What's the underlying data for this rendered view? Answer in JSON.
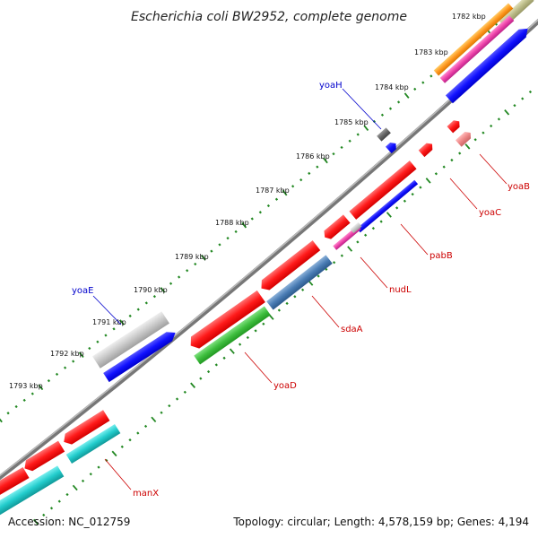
{
  "map": {
    "title": "Escherichia coli BW2952, complete genome",
    "accession": "Accession: NC_012759",
    "summary": "Topology: circular; Length: 4,578,159 bp; Genes: 4,194"
  },
  "kbp_ticks": [
    "1782 kbp",
    "1783 kbp",
    "1784 kbp",
    "1785 kbp",
    "1786 kbp",
    "1787 kbp",
    "1788 kbp",
    "1789 kbp",
    "1790 kbp",
    "1791 kbp",
    "1792 kbp",
    "1793 kbp"
  ],
  "gene_labels": [
    {
      "name": "yoaH",
      "color": "#0000cc"
    },
    {
      "name": "yoaE",
      "color": "#0000cc"
    },
    {
      "name": "yoaB",
      "color": "#cc0000"
    },
    {
      "name": "yoaC",
      "color": "#cc0000"
    },
    {
      "name": "pabB",
      "color": "#cc0000"
    },
    {
      "name": "nudL",
      "color": "#cc0000"
    },
    {
      "name": "sdaA",
      "color": "#cc0000"
    },
    {
      "name": "yoaD",
      "color": "#cc0000"
    },
    {
      "name": "manX",
      "color": "#cc0000"
    }
  ],
  "colors": {
    "backbone": "#888888",
    "tick_dots": "#228822",
    "red": "#ff1a1a",
    "blue": "#1111ff",
    "gray": "#c8c8c8",
    "green": "#3fbf3f",
    "cyan": "#22cccc",
    "steelblue": "#4a7db5",
    "magenta": "#ee44aa",
    "orange": "#ff9922",
    "olive": "#bbbb88",
    "pink": "#ee8888",
    "darkgray": "#666666"
  }
}
